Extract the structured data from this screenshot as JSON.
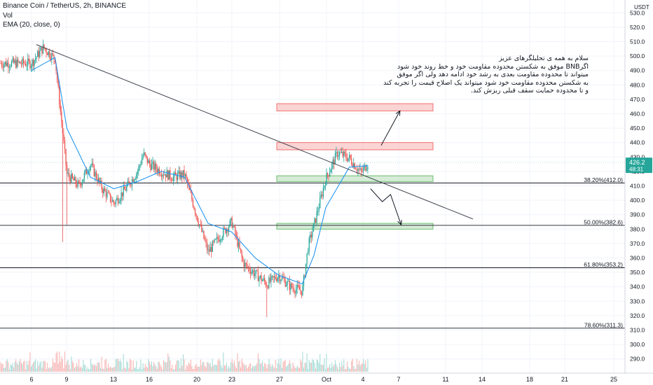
{
  "header": {
    "symbol_line": "Binance Coin / TetherUS, 2h, BINANCE",
    "vol_label": "Vol",
    "ema_label": "EMA (20, close, 0)"
  },
  "axis": {
    "currency": "USDT",
    "price_ticks": [
      "530.0",
      "520.0",
      "510.0",
      "500.0",
      "490.0",
      "480.0",
      "470.0",
      "460.0",
      "450.0",
      "440.0",
      "430.0",
      "420.0",
      "410.0",
      "400.0",
      "390.0",
      "380.0",
      "370.0",
      "360.0",
      "350.0",
      "340.0",
      "330.0",
      "320.0",
      "310.0",
      "300.0",
      "290.0"
    ],
    "time_ticks": [
      "6",
      "9",
      "13",
      "16",
      "20",
      "23",
      "27",
      "Oct",
      "4",
      "7",
      "11",
      "14",
      "18",
      "21",
      "25"
    ],
    "last_price": "426.2",
    "countdown": "48:31"
  },
  "annotation": {
    "lines": [
      "سلام به همه ی تحلیلگرهای عزیز",
      "اگرBNB موفق به شکستن محدوده مقاومت خود و خط روند خود شود",
      "میتواند تا محدوده مقاومت بعدی به رشد خود ادامه دهد ولی اگر موفق",
      "به شکستن محدوده مقاومت خود شود میتواند یک اصلاح قیمت را تجربه کند",
      "و تا محدوده حمایت سقف قبلی ریزش کند."
    ]
  },
  "colors": {
    "up": "#26a69a",
    "down": "#ef5350",
    "ema": "#2196f3",
    "resistance_fill": "#f9c5c5",
    "support_fill": "#c8e6c9",
    "price_badge": "#26a69a"
  },
  "chart_data": {
    "type": "candlestick",
    "y_axis": {
      "min": 285,
      "max": 535,
      "position": "right"
    },
    "fib_levels": [
      {
        "label": "38.20%(412.0)",
        "price": 412.0
      },
      {
        "label": "50.00%(382.6)",
        "price": 382.6
      },
      {
        "label": "61.80%(353.2)",
        "price": 353.2
      },
      {
        "label": "78.60%(311.3)",
        "price": 311.3
      }
    ],
    "zones": [
      {
        "kind": "resistance",
        "bottom": 462,
        "top": 467
      },
      {
        "kind": "resistance",
        "bottom": 435,
        "top": 440
      },
      {
        "kind": "support",
        "bottom": 413,
        "top": 417
      },
      {
        "kind": "support",
        "bottom": 380,
        "top": 384
      }
    ],
    "trendline": {
      "from": {
        "day_index": 0.4,
        "price": 508
      },
      "to": {
        "day_index": 37.5,
        "price": 387
      }
    },
    "key_points": [
      {
        "time": "Sep 6",
        "price": 495
      },
      {
        "time": "Sep 7",
        "price": 506
      },
      {
        "time": "Sep 8",
        "price": 498
      },
      {
        "time": "Sep 8.6",
        "price": 450
      },
      {
        "time": "Sep 9",
        "price": 418
      },
      {
        "time": "Sep 10",
        "price": 410
      },
      {
        "time": "Sep 11",
        "price": 425
      },
      {
        "time": "Sep 12",
        "price": 408
      },
      {
        "time": "Sep 13",
        "price": 398
      },
      {
        "time": "Sep 14",
        "price": 408
      },
      {
        "time": "Sep 15",
        "price": 420
      },
      {
        "time": "Sep 15.5",
        "price": 432
      },
      {
        "time": "Sep 16",
        "price": 425
      },
      {
        "time": "Sep 17",
        "price": 420
      },
      {
        "time": "Sep 18",
        "price": 416
      },
      {
        "time": "Sep 19",
        "price": 418
      },
      {
        "time": "Sep 20",
        "price": 390
      },
      {
        "time": "Sep 21",
        "price": 364
      },
      {
        "time": "Sep 22",
        "price": 375
      },
      {
        "time": "Sep 23",
        "price": 385
      },
      {
        "time": "Sep 24",
        "price": 356
      },
      {
        "time": "Sep 25",
        "price": 349
      },
      {
        "time": "Sep 26",
        "price": 342
      },
      {
        "time": "Sep 27",
        "price": 348
      },
      {
        "time": "Sep 28",
        "price": 340
      },
      {
        "time": "Sep 29",
        "price": 337
      },
      {
        "time": "Sep 29.5",
        "price": 368
      },
      {
        "time": "Sep 30",
        "price": 383
      },
      {
        "time": "Oct 1",
        "price": 415
      },
      {
        "time": "Oct 2",
        "price": 433
      },
      {
        "time": "Oct 3",
        "price": 429
      },
      {
        "time": "Oct 4",
        "price": 419
      },
      {
        "time": "Oct 4.6",
        "price": 426.2
      }
    ],
    "ema20": [
      {
        "time": "Sep 6",
        "price": 490
      },
      {
        "time": "Sep 8",
        "price": 499
      },
      {
        "time": "Sep 9",
        "price": 450
      },
      {
        "time": "Sep 11",
        "price": 416
      },
      {
        "time": "Sep 13",
        "price": 408
      },
      {
        "time": "Sep 15",
        "price": 413
      },
      {
        "time": "Sep 17",
        "price": 420
      },
      {
        "time": "Sep 19",
        "price": 416
      },
      {
        "time": "Sep 21",
        "price": 384
      },
      {
        "time": "Sep 23",
        "price": 378
      },
      {
        "time": "Sep 25",
        "price": 360
      },
      {
        "time": "Sep 27",
        "price": 348
      },
      {
        "time": "Sep 29",
        "price": 342
      },
      {
        "time": "Sep 30",
        "price": 362
      },
      {
        "time": "Oct 1",
        "price": 395
      },
      {
        "time": "Oct 3",
        "price": 423
      },
      {
        "time": "Oct 4.6",
        "price": 424
      }
    ],
    "scenario_paths": [
      {
        "name": "breakout",
        "points": [
          {
            "day_index": 29.7,
            "price": 438
          },
          {
            "day_index": 31.3,
            "price": 462
          }
        ]
      },
      {
        "name": "rejection",
        "points": [
          {
            "day_index": 28.8,
            "price": 408
          },
          {
            "day_index": 29.8,
            "price": 399
          },
          {
            "day_index": 30.5,
            "price": 404
          },
          {
            "day_index": 31.4,
            "price": 383
          }
        ]
      }
    ]
  }
}
